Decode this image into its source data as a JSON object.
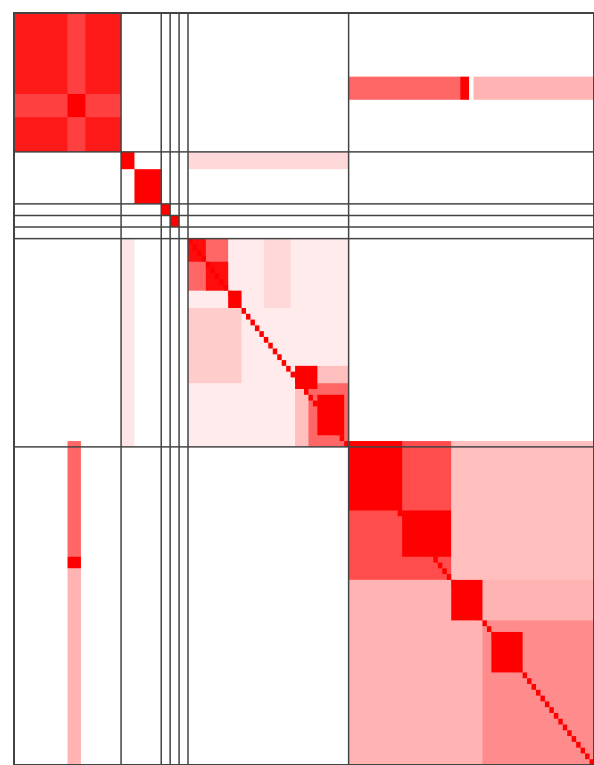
{
  "chart_data": {
    "type": "heatmap",
    "color": "#ff0000",
    "xlim": [
      0,
      130
    ],
    "ylim": [
      0,
      130
    ],
    "boundaries": [
      24,
      33,
      35,
      37,
      39,
      75
    ],
    "blocks": [
      [
        0,
        24,
        0,
        24,
        0.9
      ],
      [
        12,
        16,
        0,
        24,
        0.75
      ],
      [
        0,
        24,
        14,
        18,
        0.75
      ],
      [
        12,
        16,
        14,
        18,
        1
      ],
      [
        75,
        100,
        11,
        15,
        0.6
      ],
      [
        100,
        102,
        11,
        15,
        1
      ],
      [
        103,
        130,
        11,
        15,
        0.3
      ],
      [
        24,
        27,
        24,
        27,
        1
      ],
      [
        27,
        33,
        27,
        33,
        1
      ],
      [
        33,
        35,
        33,
        35,
        1
      ],
      [
        35,
        37,
        35,
        37,
        1
      ],
      [
        39,
        75,
        24,
        27,
        0.15
      ],
      [
        39,
        75,
        39,
        75,
        0.08
      ],
      [
        39,
        48,
        39,
        48,
        0.6
      ],
      [
        39,
        43,
        39,
        43,
        0.95
      ],
      [
        43,
        48,
        43,
        48,
        0.95
      ],
      [
        48,
        51,
        48,
        51,
        1
      ],
      [
        39,
        51,
        51,
        64,
        0.2
      ],
      [
        56,
        62,
        39,
        51,
        0.15
      ],
      [
        63,
        75,
        61,
        75,
        0.25
      ],
      [
        66,
        75,
        64,
        75,
        0.6
      ],
      [
        63,
        68,
        61,
        65,
        1
      ],
      [
        68,
        74,
        66,
        73,
        1
      ],
      [
        24,
        27,
        39,
        75,
        0.1
      ],
      [
        12,
        15,
        74,
        96,
        0.6
      ],
      [
        12,
        15,
        94,
        96,
        1
      ],
      [
        12,
        15,
        96,
        130,
        0.3
      ],
      [
        75,
        130,
        74,
        130,
        0.3
      ],
      [
        75,
        98,
        74,
        98,
        0.7
      ],
      [
        75,
        87,
        74,
        86,
        1
      ],
      [
        87,
        98,
        86,
        94,
        1
      ],
      [
        98,
        130,
        74,
        98,
        0.25
      ],
      [
        75,
        98,
        98,
        130,
        0.3
      ],
      [
        105,
        130,
        105,
        130,
        0.45
      ],
      [
        98,
        105,
        98,
        105,
        1
      ],
      [
        107,
        114,
        107,
        114,
        1
      ]
    ],
    "diagonal": {
      "from": 39,
      "to": 130,
      "value": 1
    }
  }
}
